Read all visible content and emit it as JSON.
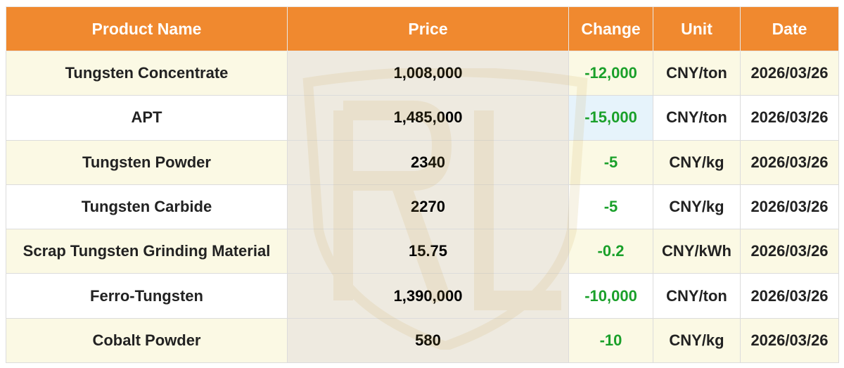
{
  "colors": {
    "header_bg": "#f0892f",
    "header_text": "#ffffff",
    "odd_row_bg": "#fbf9e4",
    "price_col_bg": "#eeeae0",
    "change_text": "#1aa02a",
    "highlight_cell": "#e6f3fb"
  },
  "table": {
    "headers": [
      "Product Name",
      "Price",
      "Change",
      "Unit",
      "Date"
    ],
    "rows": [
      {
        "name": "Tungsten Concentrate",
        "price": "1,008,000",
        "change": "-12,000",
        "unit": "CNY/ton",
        "date": "2026/03/26"
      },
      {
        "name": "APT",
        "price": "1,485,000",
        "change": "-15,000",
        "unit": "CNY/ton",
        "date": "2026/03/26"
      },
      {
        "name": "Tungsten Powder",
        "price": "2340",
        "change": "-5",
        "unit": "CNY/kg",
        "date": "2026/03/26"
      },
      {
        "name": "Tungsten Carbide",
        "price": "2270",
        "change": "-5",
        "unit": "CNY/kg",
        "date": "2026/03/26"
      },
      {
        "name": "Scrap Tungsten Grinding Material",
        "price": "15.75",
        "change": "-0.2",
        "unit": "CNY/kWh",
        "date": "2026/03/26"
      },
      {
        "name": "Ferro-Tungsten",
        "price": "1,390,000",
        "change": "-10,000",
        "unit": "CNY/ton",
        "date": "2026/03/26"
      },
      {
        "name": "Cobalt Powder",
        "price": "580",
        "change": "-10",
        "unit": "CNY/kg",
        "date": "2026/03/26"
      }
    ]
  },
  "watermark_icon": "shield-logo-icon"
}
